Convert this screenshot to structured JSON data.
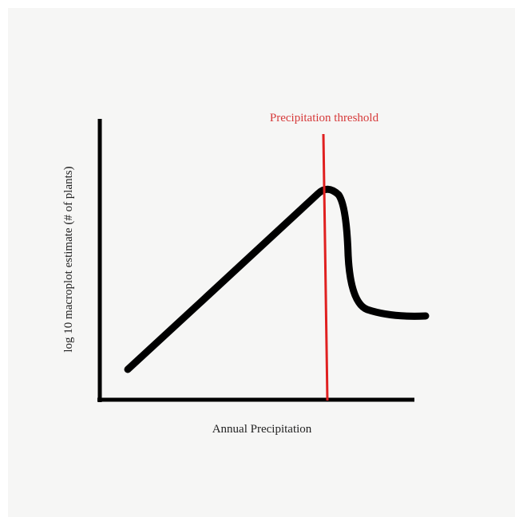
{
  "diagram": {
    "annotation": "Precipitation threshold",
    "x_axis_label": "Annual Precipitation",
    "y_axis_label": "log 10 macroplot estimate (# of plants)"
  }
}
